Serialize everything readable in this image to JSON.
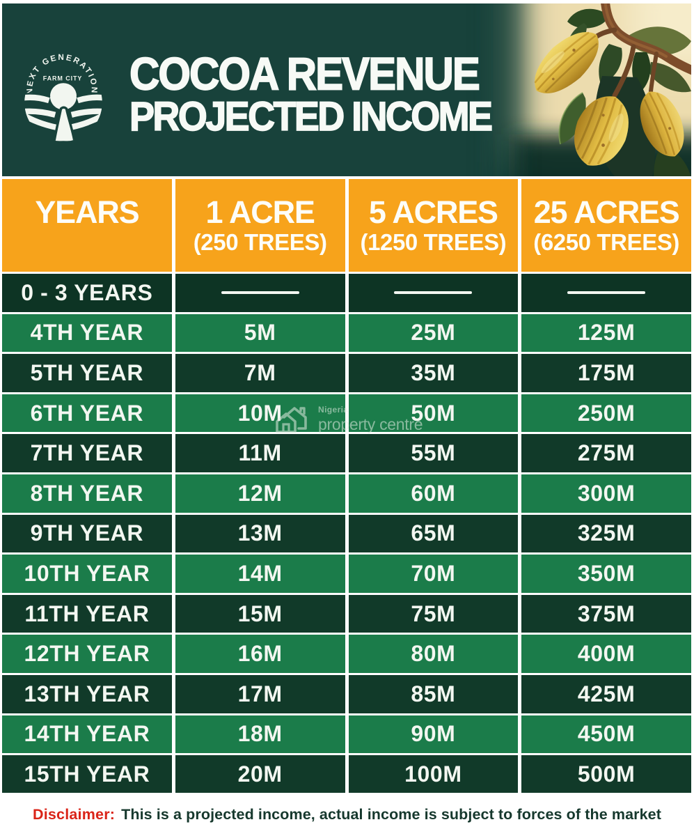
{
  "banner": {
    "logo": {
      "arc_text": "NEXT GENERATION",
      "subtitle": "FARM CITY"
    },
    "title_line1": "COCOA REVENUE",
    "title_line2": "PROJECTED INCOME"
  },
  "table": {
    "columns": [
      {
        "title": "YEARS",
        "subtitle": ""
      },
      {
        "title": "1 ACRE",
        "subtitle": "(250 TREES)"
      },
      {
        "title": "5 ACRES",
        "subtitle": "(1250 TREES)"
      },
      {
        "title": "25 ACRES",
        "subtitle": "(6250 TREES)"
      }
    ],
    "rows": [
      {
        "label": "0 - 3 YEARS",
        "values": [
          "dash",
          "dash",
          "dash"
        ]
      },
      {
        "label": "4TH YEAR",
        "values": [
          "5M",
          "25M",
          "125M"
        ]
      },
      {
        "label": "5TH YEAR",
        "values": [
          "7M",
          "35M",
          "175M"
        ]
      },
      {
        "label": "6TH YEAR",
        "values": [
          "10M",
          "50M",
          "250M"
        ]
      },
      {
        "label": "7TH YEAR",
        "values": [
          "11M",
          "55M",
          "275M"
        ]
      },
      {
        "label": "8TH YEAR",
        "values": [
          "12M",
          "60M",
          "300M"
        ]
      },
      {
        "label": "9TH YEAR",
        "values": [
          "13M",
          "65M",
          "325M"
        ]
      },
      {
        "label": "10TH YEAR",
        "values": [
          "14M",
          "70M",
          "350M"
        ]
      },
      {
        "label": "11TH YEAR",
        "values": [
          "15M",
          "75M",
          "375M"
        ]
      },
      {
        "label": "12TH YEAR",
        "values": [
          "16M",
          "80M",
          "400M"
        ]
      },
      {
        "label": "13TH YEAR",
        "values": [
          "17M",
          "85M",
          "425M"
        ]
      },
      {
        "label": "14TH YEAR",
        "values": [
          "18M",
          "90M",
          "450M"
        ]
      },
      {
        "label": "15TH YEAR",
        "values": [
          "20M",
          "100M",
          "500M"
        ]
      }
    ]
  },
  "watermark": {
    "line1": "Nigeria",
    "line2": "property centre"
  },
  "disclaimer": {
    "label": "Disclaimer:",
    "text": "This is a projected income, actual income is subject to forces of the market"
  },
  "colors": {
    "banner_teal": "#18423b",
    "header_orange": "#f7a31b",
    "row_dark": "#113a29",
    "row_bright": "#1b7c4a",
    "row_first": "#0d3424",
    "disclaimer_red": "#da2418",
    "disclaimer_body": "#16382d",
    "photo_beige": "#ecdcae"
  },
  "chart_data": {
    "type": "table",
    "title": "COCOA REVENUE PROJECTED INCOME",
    "columns": [
      "YEARS",
      "1 ACRE (250 TREES)",
      "5 ACRES (1250 TREES)",
      "25 ACRES (6250 TREES)"
    ],
    "rows": [
      [
        "0 - 3 YEARS",
        "—",
        "—",
        "—"
      ],
      [
        "4TH YEAR",
        "5M",
        "25M",
        "125M"
      ],
      [
        "5TH YEAR",
        "7M",
        "35M",
        "175M"
      ],
      [
        "6TH YEAR",
        "10M",
        "50M",
        "250M"
      ],
      [
        "7TH YEAR",
        "11M",
        "55M",
        "275M"
      ],
      [
        "8TH YEAR",
        "12M",
        "60M",
        "300M"
      ],
      [
        "9TH YEAR",
        "13M",
        "65M",
        "325M"
      ],
      [
        "10TH YEAR",
        "14M",
        "70M",
        "350M"
      ],
      [
        "11TH YEAR",
        "15M",
        "75M",
        "375M"
      ],
      [
        "12TH YEAR",
        "16M",
        "80M",
        "400M"
      ],
      [
        "13TH YEAR",
        "17M",
        "85M",
        "425M"
      ],
      [
        "14TH YEAR",
        "18M",
        "90M",
        "450M"
      ],
      [
        "15TH YEAR",
        "20M",
        "100M",
        "500M"
      ]
    ],
    "notes": "Disclaimer: This is a projected income, actual income is subject to forces of the market"
  }
}
